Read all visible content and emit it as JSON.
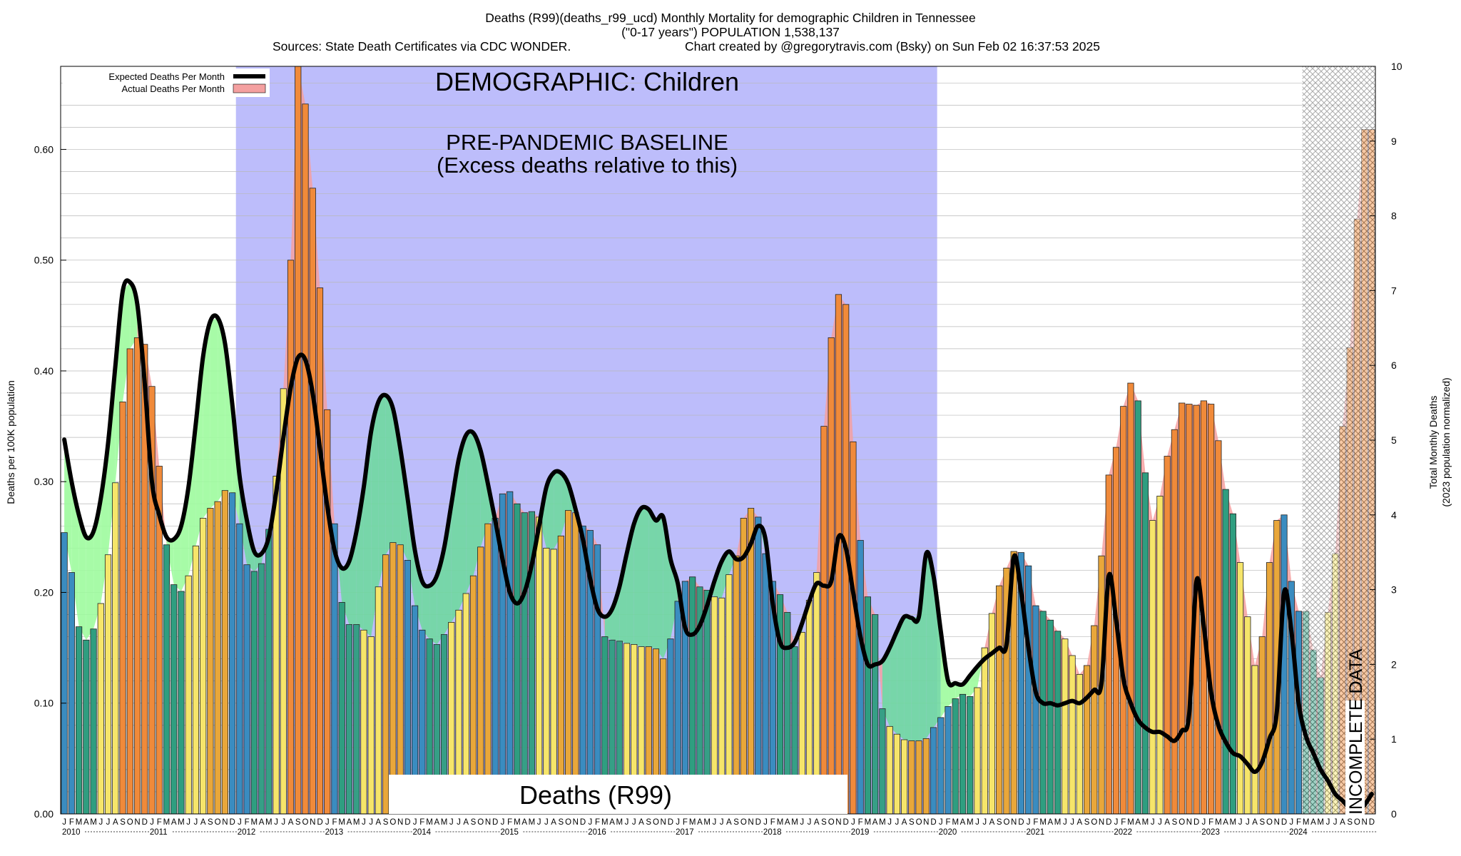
{
  "header": {
    "title": "Deaths (R99)(deaths_r99_ucd) Monthly Mortality for demographic Children in Tennessee",
    "subtitle": "(\"0-17 years\") POPULATION 1,538,137",
    "sources": "Sources: State Death Certificates via CDC WONDER.",
    "credit": "Chart created by @gregorytravis.com (Bsky) on Sun Feb 02 16:37:53 2025"
  },
  "annotations": {
    "demographic": "DEMOGRAPHIC: Children",
    "baseline_line1": "PRE-PANDEMIC BASELINE",
    "baseline_line2": "(Excess deaths relative to this)",
    "cause": "Deaths (R99)",
    "incomplete": "INCOMPLETE DATA"
  },
  "legend": {
    "expected": "Expected Deaths Per Month",
    "actual": "Actual Deaths Per Month"
  },
  "colors": {
    "baseline_band": "#bdbdfb",
    "expected_line": "#000000",
    "excess_fill": "#f4a0a0",
    "below_fill_light": "#9dfb9d",
    "below_fill_dark": "#6fd8a0",
    "winter_bar": "#3a8cc0",
    "spring_bar": "#2f9e80",
    "summer_bar": "#f6e56a",
    "fall_bar": "#e9a73a",
    "high_bar": "#f08a3a",
    "incomplete_hatch": "#888888"
  },
  "chart_data": {
    "type": "bar",
    "title": "Deaths (R99)(deaths_r99_ucd) Monthly Mortality for demographic Children in Tennessee",
    "ylabel": "Deaths per 100K population",
    "y2label_line1": "Total Monthly Deaths",
    "y2label_line2": "(2023 population normalized)",
    "ylim": [
      0,
      0.675
    ],
    "y2lim": [
      0,
      10
    ],
    "yticks": [
      "0.00",
      "0.10",
      "0.20",
      "0.30",
      "0.40",
      "0.50",
      "0.60"
    ],
    "y2ticks": [
      "0",
      "1",
      "2",
      "3",
      "4",
      "5",
      "6",
      "7",
      "8",
      "9",
      "10"
    ],
    "month_letters": [
      "J",
      "F",
      "M",
      "A",
      "M",
      "J",
      "J",
      "A",
      "S",
      "O",
      "N",
      "D"
    ],
    "years": [
      "2010",
      "2011",
      "2012",
      "2013",
      "2014",
      "2015",
      "2016",
      "2017",
      "2018",
      "2019",
      "2020",
      "2021",
      "2022",
      "2023",
      "2024"
    ],
    "start": "2010-01",
    "baseline_period": [
      "2012-01",
      "2019-12"
    ],
    "incomplete_period": [
      "2024-03",
      "2024-12"
    ],
    "grid": true,
    "legend_position": "top-left",
    "series": [
      {
        "name": "Actual Deaths Per Month",
        "values": [
          0.254,
          0.218,
          0.169,
          0.157,
          0.167,
          0.19,
          0.234,
          0.299,
          0.372,
          0.42,
          0.43,
          0.424,
          0.386,
          0.314,
          0.243,
          0.207,
          0.201,
          0.215,
          0.242,
          0.267,
          0.276,
          0.282,
          0.292,
          0.29,
          0.262,
          0.225,
          0.219,
          0.226,
          0.257,
          0.305,
          0.384,
          0.5,
          0.675,
          0.641,
          0.565,
          0.475,
          0.365,
          0.262,
          0.191,
          0.171,
          0.171,
          0.166,
          0.16,
          0.205,
          0.234,
          0.245,
          0.243,
          0.229,
          0.188,
          0.166,
          0.158,
          0.153,
          0.162,
          0.173,
          0.184,
          0.199,
          0.215,
          0.241,
          0.262,
          0.267,
          0.289,
          0.291,
          0.28,
          0.272,
          0.273,
          0.268,
          0.24,
          0.239,
          0.251,
          0.274,
          0.272,
          0.26,
          0.256,
          0.243,
          0.16,
          0.157,
          0.156,
          0.154,
          0.153,
          0.151,
          0.151,
          0.149,
          0.14,
          0.158,
          0.192,
          0.21,
          0.214,
          0.205,
          0.202,
          0.196,
          0.195,
          0.216,
          0.233,
          0.267,
          0.276,
          0.268,
          0.235,
          0.21,
          0.198,
          0.182,
          0.151,
          0.164,
          0.193,
          0.218,
          0.35,
          0.43,
          0.469,
          0.46,
          0.336,
          0.247,
          0.196,
          0.18,
          0.095,
          0.079,
          0.072,
          0.067,
          0.066,
          0.066,
          0.068,
          0.078,
          0.087,
          0.097,
          0.104,
          0.108,
          0.106,
          0.114,
          0.15,
          0.181,
          0.206,
          0.222,
          0.237,
          0.236,
          0.224,
          0.188,
          0.183,
          0.175,
          0.165,
          0.158,
          0.143,
          0.126,
          0.134,
          0.17,
          0.233,
          0.306,
          0.331,
          0.368,
          0.389,
          0.373,
          0.308,
          0.265,
          0.287,
          0.323,
          0.347,
          0.371,
          0.37,
          0.369,
          0.373,
          0.37,
          0.337,
          0.293,
          0.271,
          0.227,
          0.178,
          0.134,
          0.16,
          0.227,
          0.265,
          0.27,
          0.21,
          0.183,
          0.183,
          0.148,
          0.123,
          0.182,
          0.235,
          0.35,
          0.421,
          0.537,
          0.618,
          0.618
        ]
      },
      {
        "name": "Expected Deaths Per Month",
        "values": [
          0.338,
          0.3,
          0.27,
          0.25,
          0.255,
          0.285,
          0.335,
          0.405,
          0.472,
          0.48,
          0.46,
          0.39,
          0.3,
          0.27,
          0.25,
          0.248,
          0.26,
          0.295,
          0.352,
          0.413,
          0.445,
          0.448,
          0.425,
          0.37,
          0.305,
          0.265,
          0.237,
          0.235,
          0.25,
          0.29,
          0.34,
          0.385,
          0.412,
          0.41,
          0.38,
          0.33,
          0.278,
          0.238,
          0.222,
          0.228,
          0.255,
          0.295,
          0.345,
          0.372,
          0.378,
          0.366,
          0.33,
          0.285,
          0.238,
          0.21,
          0.206,
          0.215,
          0.24,
          0.28,
          0.32,
          0.342,
          0.344,
          0.328,
          0.298,
          0.265,
          0.23,
          0.2,
          0.19,
          0.2,
          0.225,
          0.26,
          0.295,
          0.308,
          0.308,
          0.298,
          0.275,
          0.248,
          0.212,
          0.185,
          0.178,
          0.185,
          0.205,
          0.235,
          0.262,
          0.276,
          0.275,
          0.265,
          0.268,
          0.23,
          0.208,
          0.168,
          0.162,
          0.17,
          0.188,
          0.21,
          0.228,
          0.237,
          0.23,
          0.232,
          0.244,
          0.26,
          0.248,
          0.19,
          0.155,
          0.15,
          0.155,
          0.172,
          0.192,
          0.208,
          0.206,
          0.21,
          0.25,
          0.24,
          0.2,
          0.16,
          0.135,
          0.135,
          0.138,
          0.15,
          0.165,
          0.178,
          0.177,
          0.178,
          0.235,
          0.215,
          0.165,
          0.12,
          0.118,
          0.117,
          0.125,
          0.133,
          0.14,
          0.145,
          0.15,
          0.153,
          0.232,
          0.2,
          0.15,
          0.11,
          0.1,
          0.1,
          0.098,
          0.1,
          0.102,
          0.1,
          0.105,
          0.112,
          0.118,
          0.215,
          0.175,
          0.122,
          0.1,
          0.085,
          0.078,
          0.074,
          0.074,
          0.07,
          0.066,
          0.075,
          0.09,
          0.21,
          0.17,
          0.11,
          0.08,
          0.065,
          0.055,
          0.052,
          0.045,
          0.038,
          0.047,
          0.068,
          0.092,
          0.2,
          0.165,
          0.1,
          0.07,
          0.055,
          0.04,
          0.03,
          0.018,
          0.012,
          0.005,
          0.002,
          0.008,
          0.018
        ]
      }
    ]
  }
}
